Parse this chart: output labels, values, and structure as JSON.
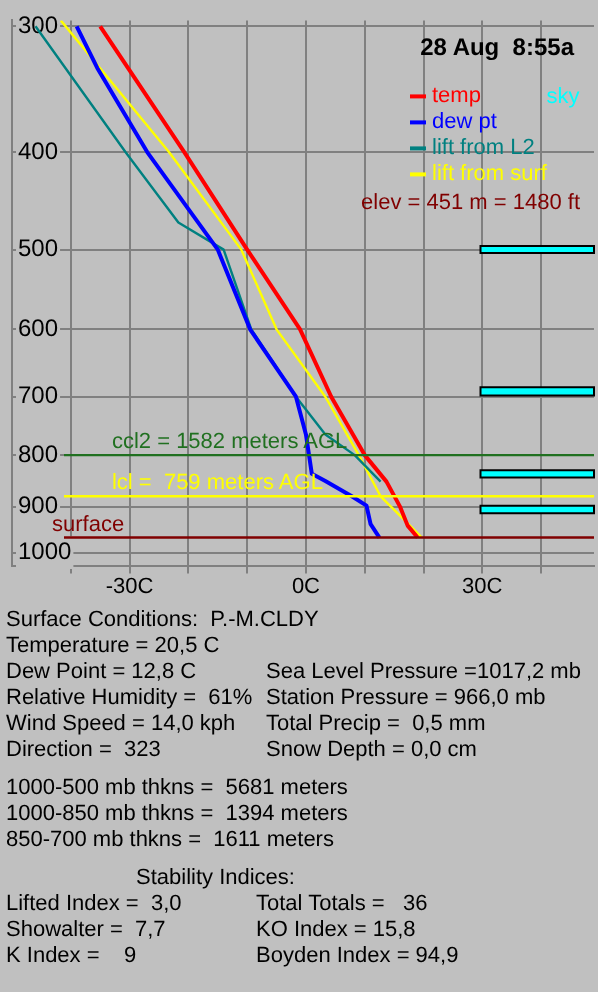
{
  "chart_data": {
    "type": "line",
    "xlim": [
      -50,
      49
    ],
    "xticks": [
      {
        "value": -40,
        "label": null
      },
      {
        "value": -30,
        "label": "-30C"
      },
      {
        "value": -20,
        "label": null
      },
      {
        "value": -10,
        "label": null
      },
      {
        "value": 0,
        "label": "0C"
      },
      {
        "value": 10,
        "label": null
      },
      {
        "value": 20,
        "label": null
      },
      {
        "value": 30,
        "label": "30C"
      },
      {
        "value": 40,
        "label": null
      }
    ],
    "ylim": [
      1030,
      296
    ],
    "yticks": [
      300,
      400,
      500,
      600,
      700,
      800,
      900,
      1000
    ],
    "log": "y",
    "grid": true,
    "legend": "top right",
    "marker": "none",
    "line_style": "solid",
    "series": [
      {
        "name": "temp",
        "color": "#ff0000",
        "x": [
          -35,
          -20.7,
          -10,
          -1,
          4.3,
          10,
          13.7,
          16,
          17.3,
          19
        ],
        "values": [
          300,
          400,
          500,
          600,
          700,
          800,
          850,
          900,
          940,
          966
        ]
      },
      {
        "name": "dew pt",
        "color": "#0000ff",
        "x": [
          -39,
          -35.5,
          -27,
          -15,
          -9.5,
          -1.7,
          0,
          1,
          3.3,
          7.8,
          10.3,
          11,
          12.5
        ],
        "values": [
          300,
          330,
          400,
          500,
          600,
          700,
          763,
          835,
          849,
          879,
          898,
          937,
          966
        ]
      },
      {
        "name": "lift from L2",
        "color": "#008080",
        "x": [
          -46,
          -30.7,
          -21.7,
          -14,
          -9.3,
          -1.7,
          3.3,
          8.3,
          12.7
        ],
        "values": [
          300,
          400,
          470,
          500,
          600,
          700,
          763,
          800,
          850
        ]
      },
      {
        "name": "lift from surf",
        "color": "#ffff00",
        "x": [
          -41.7,
          -23.3,
          -11,
          -5,
          3.3,
          9,
          12.7,
          17.7,
          19.7
        ],
        "values": [
          296,
          400,
          500,
          600,
          700,
          800,
          879,
          940,
          966
        ]
      }
    ],
    "ref_lines": [
      {
        "axis": "y",
        "value": 800,
        "color": "#207020"
      },
      {
        "axis": "y",
        "value": 879,
        "color": "#ffff00"
      },
      {
        "axis": "y",
        "value": 966,
        "label": "surface",
        "color": "#800000"
      }
    ],
    "bands": [
      {
        "axis": "y",
        "from": 496,
        "to": 504,
        "label": "sky",
        "color": "#00ffff"
      },
      {
        "axis": "y",
        "from": 685,
        "to": 698,
        "label": null,
        "color": "#00ffff"
      },
      {
        "axis": "y",
        "from": 828,
        "to": 842,
        "label": null,
        "color": "#00ffff"
      },
      {
        "axis": "y",
        "from": 898,
        "to": 914,
        "label": null,
        "color": "#00ffff"
      }
    ],
    "annotations": [
      "28 Aug  8:55a",
      "elev = 451 m = 1480 ft",
      {
        "text": "ccl2 = 1582 meters AGL",
        "x": -33,
        "y": 800
      },
      {
        "text": "lcl =  759 meters AGL",
        "x": -33,
        "y": 879
      },
      "Surface Conditions:  P.-M.CLDY",
      "Temperature = 20,5 C",
      "Dew Point = 12,8 C",
      "Relative Humidity =  61%",
      "Wind Speed = 14,0 kph",
      "Direction =  323",
      "Sea Level Pressure =1017,2 mb",
      "Station Pressure = 966,0 mb",
      "Total Precip =  0,5 mm",
      "Snow Depth = 0,0 cm",
      "1000-500 mb thkns =  5681 meters",
      "1000-850 mb thkns =  1394 meters",
      "850-700 mb thkns =  1611 meters",
      "Stability Indices:",
      "Lifted Index =  3,0",
      "Showalter =  7,7",
      "K Index =    9",
      "Total Totals =   36",
      "KO Index = 15,8",
      "Boyden Index = 94,9"
    ]
  }
}
